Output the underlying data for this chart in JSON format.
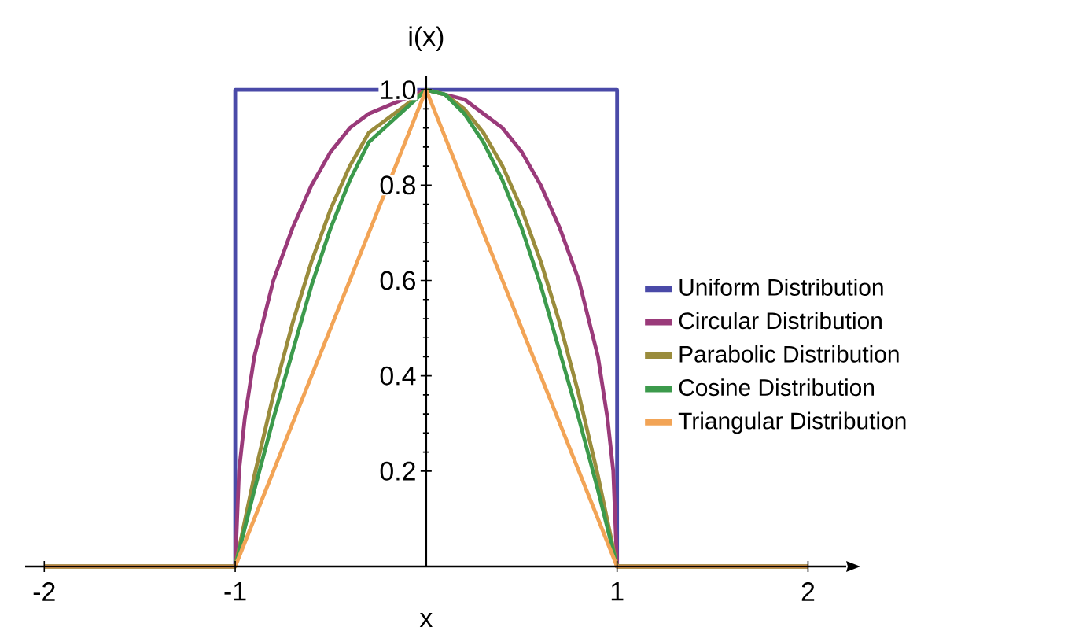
{
  "chart_data": {
    "type": "line",
    "xlabel": "x",
    "ylabel": "i(x)",
    "xlim": [
      -2.1,
      2.2
    ],
    "ylim": [
      0,
      1.03
    ],
    "xticks": [
      -2,
      -1,
      1,
      2
    ],
    "yticks": [
      0.2,
      0.4,
      0.6,
      0.8,
      {
        "value": 1,
        "label": "1.0"
      }
    ],
    "grid": false,
    "legend": "right",
    "marker": "none",
    "line_style": "solid",
    "series": [
      {
        "name": "Uniform Distribution",
        "color": "#4a4aa8",
        "x": [
          -2,
          -1,
          -1,
          1,
          1,
          2
        ],
        "values": [
          0,
          0,
          1,
          1,
          0,
          0
        ]
      },
      {
        "name": "Circular Distribution",
        "color": "#9a3a7a",
        "x": [
          -2,
          -1,
          -0.98,
          -0.95,
          -0.9,
          -0.8,
          -0.7,
          -0.6,
          -0.5,
          -0.4,
          -0.3,
          0,
          0.1,
          0.2,
          0.3,
          0.4,
          0.5,
          0.6,
          0.7,
          0.8,
          0.9,
          0.95,
          0.98,
          1,
          2
        ],
        "values": [
          0,
          0,
          0.2,
          0.31,
          0.44,
          0.6,
          0.71,
          0.8,
          0.87,
          0.92,
          0.95,
          1,
          0.99,
          0.98,
          0.95,
          0.92,
          0.87,
          0.8,
          0.71,
          0.6,
          0.44,
          0.31,
          0.2,
          0,
          0
        ]
      },
      {
        "name": "Parabolic Distribution",
        "color": "#9a8c3c",
        "x": [
          -2,
          -1,
          -0.9,
          -0.8,
          -0.7,
          -0.6,
          -0.5,
          -0.4,
          -0.3,
          0,
          0.1,
          0.2,
          0.3,
          0.4,
          0.5,
          0.6,
          0.7,
          0.8,
          0.9,
          1,
          2
        ],
        "values": [
          0,
          0,
          0.19,
          0.36,
          0.51,
          0.64,
          0.75,
          0.84,
          0.91,
          1,
          0.99,
          0.96,
          0.91,
          0.84,
          0.75,
          0.64,
          0.51,
          0.36,
          0.19,
          0,
          0
        ]
      },
      {
        "name": "Cosine Distribution",
        "color": "#3c9a4c",
        "x": [
          -2,
          -1,
          -0.9,
          -0.8,
          -0.7,
          -0.6,
          -0.5,
          -0.4,
          -0.3,
          0,
          0.1,
          0.2,
          0.3,
          0.4,
          0.5,
          0.6,
          0.7,
          0.8,
          0.9,
          1,
          2
        ],
        "values": [
          0,
          0,
          0.16,
          0.31,
          0.45,
          0.59,
          0.71,
          0.81,
          0.89,
          1,
          0.99,
          0.95,
          0.89,
          0.81,
          0.71,
          0.59,
          0.45,
          0.31,
          0.16,
          0,
          0
        ]
      },
      {
        "name": "Triangular Distribution",
        "color": "#f2a456",
        "x": [
          -2,
          -1,
          0,
          1,
          2
        ],
        "values": [
          0,
          0,
          1,
          0,
          0
        ]
      }
    ]
  }
}
